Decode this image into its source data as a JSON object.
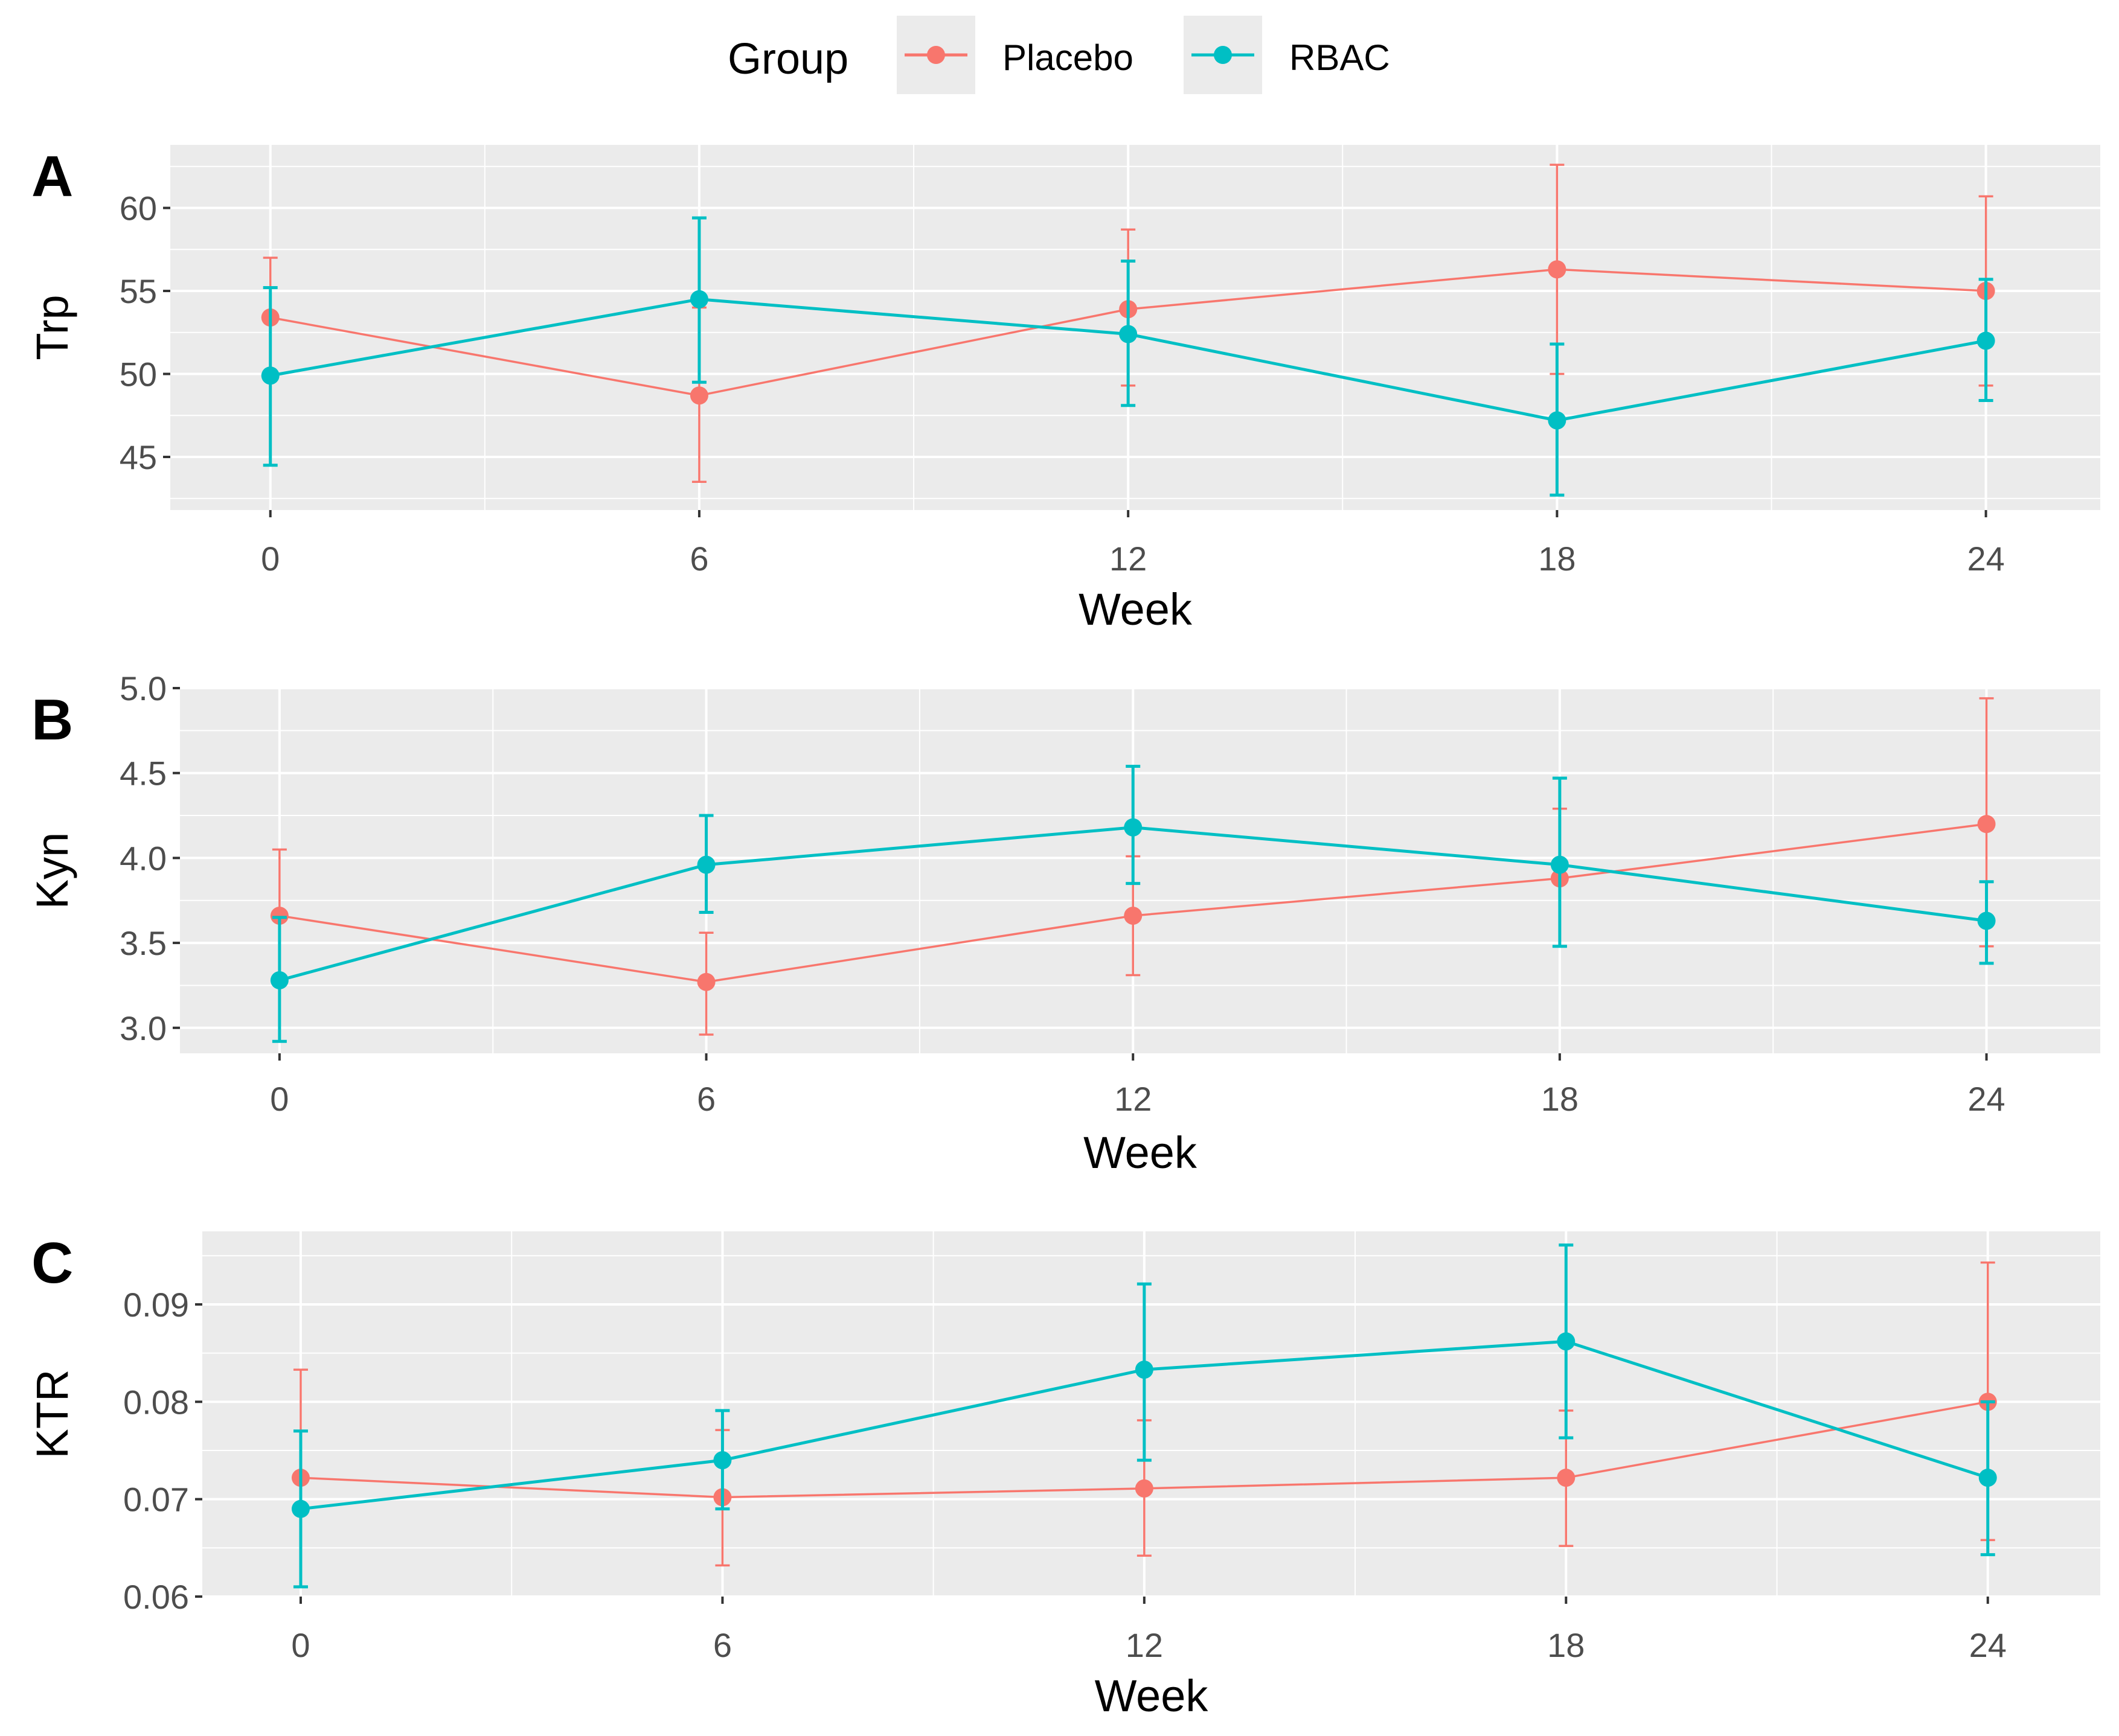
{
  "legend": {
    "title": "Group",
    "entries": [
      {
        "label": "Placebo",
        "color": "#F8766D"
      },
      {
        "label": "RBAC",
        "color": "#00BFC4"
      }
    ]
  },
  "colors": {
    "panel_background": "#EBEBEB",
    "grid": "#FFFFFF",
    "placebo": "#F8766D",
    "rbac": "#00BFC4"
  },
  "chart_data": [
    {
      "type": "line",
      "panel_label": "A",
      "title": "",
      "xlabel": "Week",
      "ylabel": "Trp",
      "x": [
        0,
        6,
        12,
        18,
        24
      ],
      "xticks": [
        "0",
        "6",
        "12",
        "18",
        "24"
      ],
      "xlim": [
        -1.4,
        25.6
      ],
      "yticks": [
        45,
        50,
        55,
        60
      ],
      "ytick_labels": [
        "45",
        "50",
        "55",
        "60"
      ],
      "ylim": [
        41.8,
        63.8
      ],
      "series": [
        {
          "name": "Placebo",
          "values": [
            53.4,
            48.7,
            53.9,
            56.3,
            55.0
          ],
          "lower": [
            49.9,
            43.5,
            49.3,
            50.0,
            49.3
          ],
          "upper": [
            57.0,
            54.0,
            58.7,
            62.6,
            60.7
          ]
        },
        {
          "name": "RBAC",
          "values": [
            49.9,
            54.5,
            52.4,
            47.2,
            52.0
          ],
          "lower": [
            44.5,
            49.5,
            48.1,
            42.7,
            48.4
          ],
          "upper": [
            55.2,
            59.4,
            56.8,
            51.8,
            55.7
          ]
        }
      ]
    },
    {
      "type": "line",
      "panel_label": "B",
      "title": "",
      "xlabel": "Week",
      "ylabel": "Kyn",
      "x": [
        0,
        6,
        12,
        18,
        24
      ],
      "xticks": [
        "0",
        "6",
        "12",
        "18",
        "24"
      ],
      "xlim": [
        -1.4,
        25.6
      ],
      "yticks": [
        3.0,
        3.5,
        4.0,
        4.5,
        5.0
      ],
      "ytick_labels": [
        "3.0",
        "3.5",
        "4.0",
        "4.5",
        "5.0"
      ],
      "ylim": [
        2.85,
        5.0
      ],
      "series": [
        {
          "name": "Placebo",
          "values": [
            3.66,
            3.27,
            3.66,
            3.88,
            4.2
          ],
          "lower": [
            3.27,
            2.96,
            3.31,
            3.48,
            3.48
          ],
          "upper": [
            4.05,
            3.56,
            4.01,
            4.29,
            4.94
          ]
        },
        {
          "name": "RBAC",
          "values": [
            3.28,
            3.96,
            4.18,
            3.96,
            3.63
          ],
          "lower": [
            2.92,
            3.68,
            3.85,
            3.48,
            3.38
          ],
          "upper": [
            3.65,
            4.25,
            4.54,
            4.47,
            3.86
          ]
        }
      ]
    },
    {
      "type": "line",
      "panel_label": "C",
      "title": "",
      "xlabel": "Week",
      "ylabel": "KTR",
      "x": [
        0,
        6,
        12,
        18,
        24
      ],
      "xticks": [
        "0",
        "6",
        "12",
        "18",
        "24"
      ],
      "xlim": [
        -1.4,
        25.6
      ],
      "yticks": [
        0.06,
        0.07,
        0.08,
        0.09
      ],
      "ytick_labels": [
        "0.06",
        "0.07",
        "0.08",
        "0.09"
      ],
      "ylim": [
        0.06,
        0.0975
      ],
      "series": [
        {
          "name": "Placebo",
          "values": [
            0.0722,
            0.0702,
            0.0711,
            0.0722,
            0.08
          ],
          "lower": [
            0.061,
            0.0632,
            0.0642,
            0.0652,
            0.0658
          ],
          "upper": [
            0.0833,
            0.0771,
            0.0781,
            0.0791,
            0.0943
          ]
        },
        {
          "name": "RBAC",
          "values": [
            0.069,
            0.074,
            0.0833,
            0.0862,
            0.0722
          ],
          "lower": [
            0.061,
            0.069,
            0.074,
            0.0763,
            0.0643
          ],
          "upper": [
            0.077,
            0.0791,
            0.0921,
            0.0961,
            0.08
          ]
        }
      ]
    }
  ]
}
